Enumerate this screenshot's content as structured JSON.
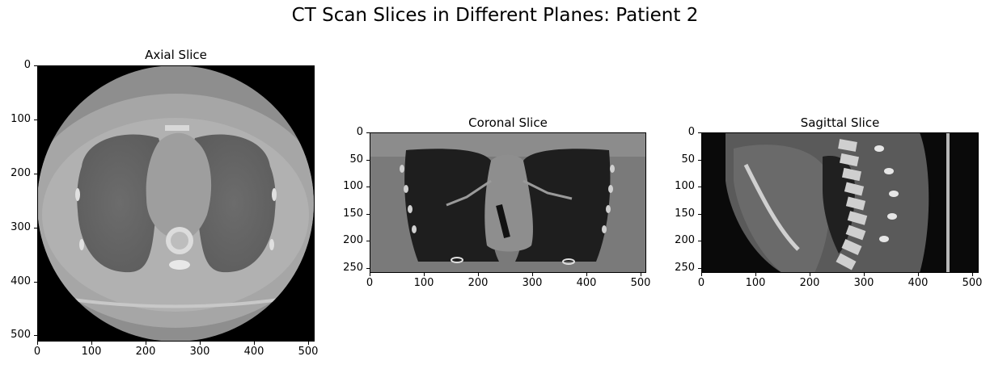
{
  "figure": {
    "title": "CT Scan Slices in Different Planes: Patient 2"
  },
  "panels": [
    {
      "id": "axial",
      "title": "Axial Slice",
      "x_ticks": [
        "0",
        "100",
        "200",
        "300",
        "400",
        "500"
      ],
      "y_ticks": [
        "0",
        "100",
        "200",
        "300",
        "400",
        "500"
      ]
    },
    {
      "id": "coronal",
      "title": "Coronal Slice",
      "x_ticks": [
        "0",
        "100",
        "200",
        "300",
        "400",
        "500"
      ],
      "y_ticks": [
        "0",
        "50",
        "100",
        "150",
        "200",
        "250"
      ]
    },
    {
      "id": "sagittal",
      "title": "Sagittal Slice",
      "x_ticks": [
        "0",
        "100",
        "200",
        "300",
        "400",
        "500"
      ],
      "y_ticks": [
        "0",
        "50",
        "100",
        "150",
        "200",
        "250"
      ]
    }
  ]
}
